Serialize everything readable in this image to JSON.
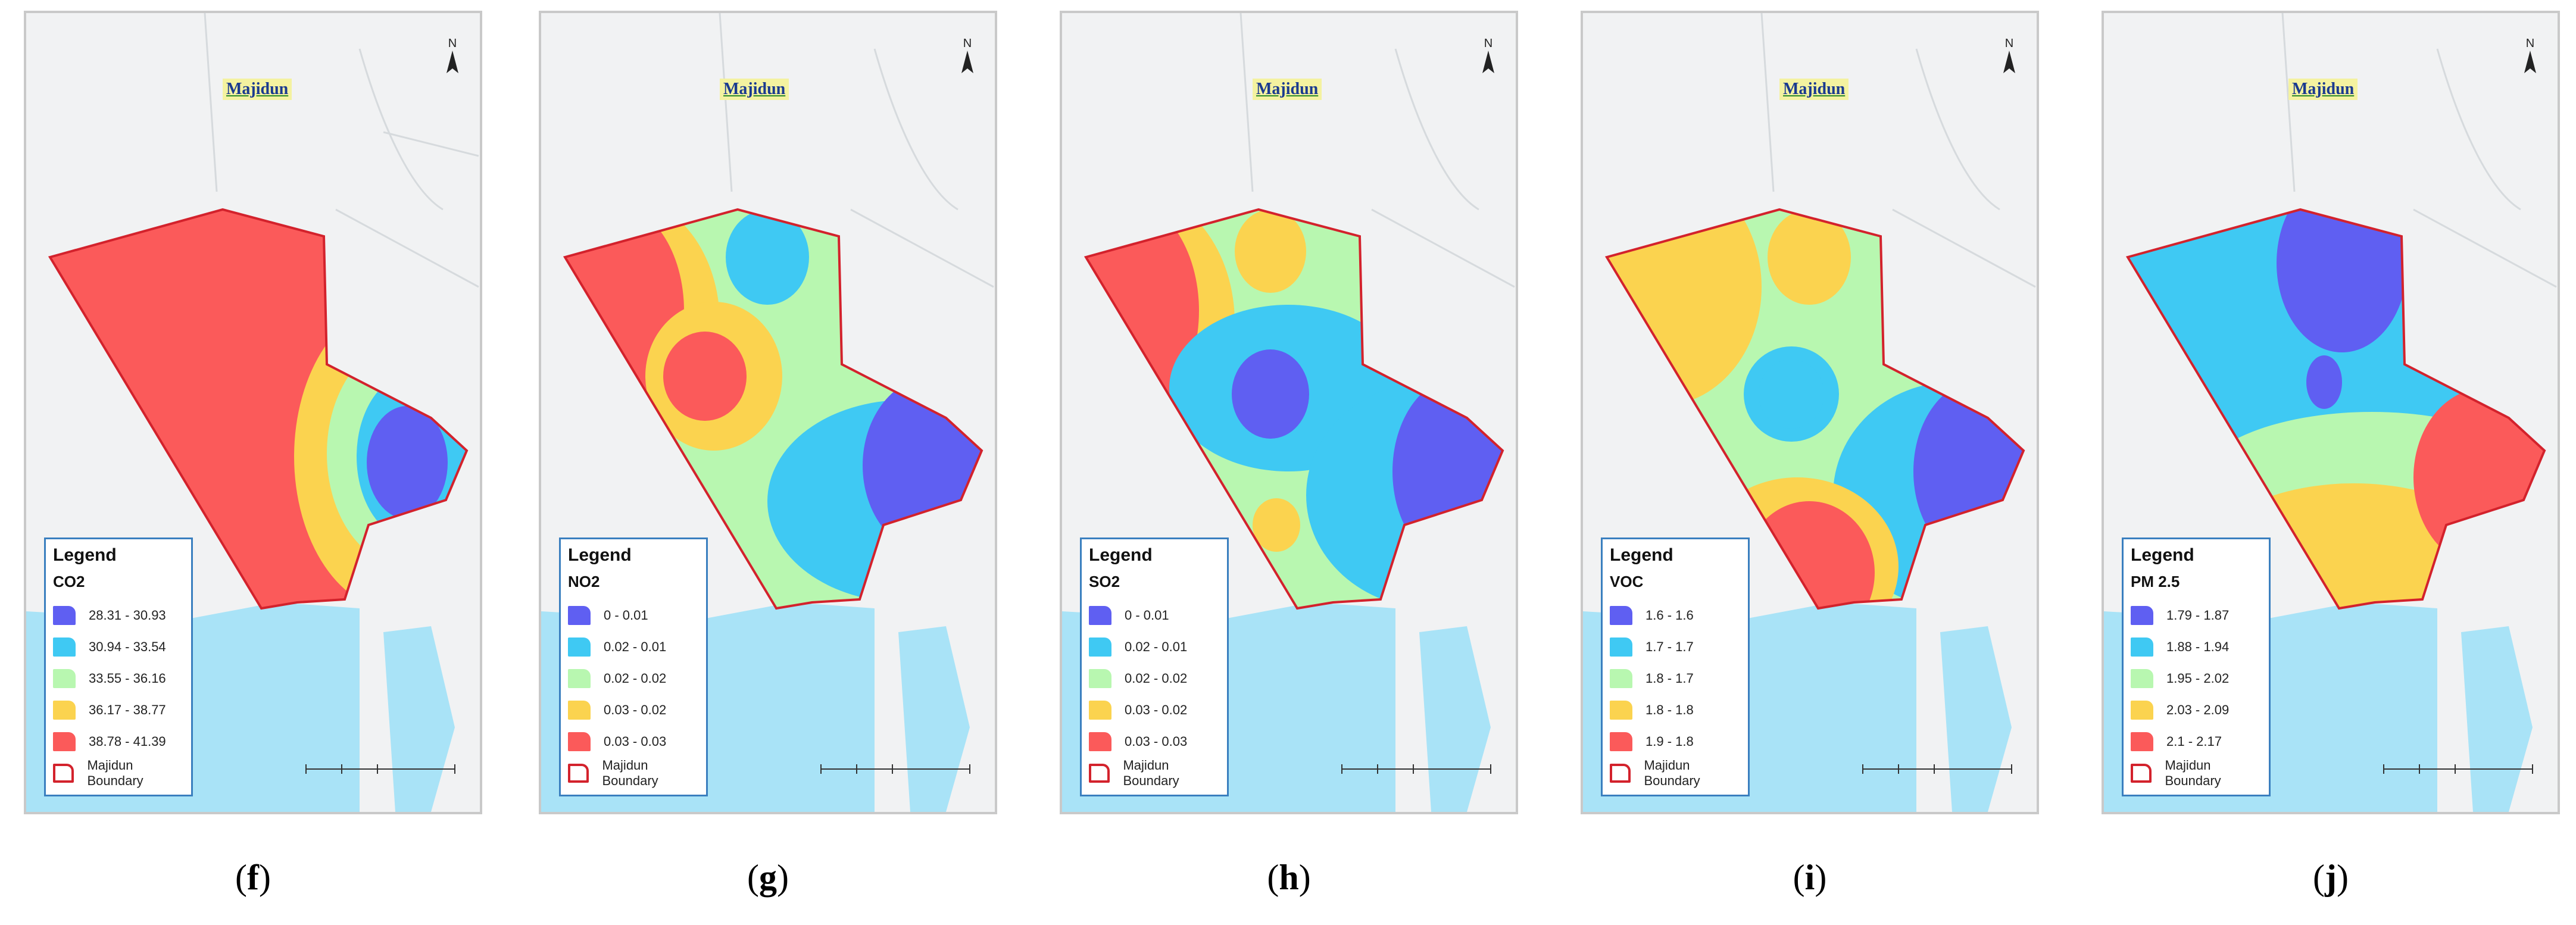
{
  "colors": {
    "class1": "#5f5ff2",
    "class2": "#3fc9f3",
    "class3": "#b8f7b0",
    "class4": "#fbd34f",
    "class5": "#fb5a5a",
    "boundary": "#d3222c",
    "sea": "#a9e3f7",
    "land": "#f1f2f3"
  },
  "panels": [
    {
      "town_label": "Majidun",
      "north_letter": "N",
      "legend_title": "Legend",
      "variable": "CO2",
      "classes": [
        "28.31 - 30.93",
        "30.94 - 33.54",
        "33.55 - 36.16",
        "36.17 - 38.77",
        "38.78 - 41.39"
      ],
      "boundary_label": "Majidun Boundary",
      "caption_letter": "f",
      "caption_full": "(f)"
    },
    {
      "town_label": "Majidun",
      "north_letter": "N",
      "legend_title": "Legend",
      "variable": "NO2",
      "classes": [
        "0 - 0.01",
        "0.02 - 0.01",
        "0.02 - 0.02",
        "0.03 - 0.02",
        "0.03 - 0.03"
      ],
      "boundary_label": "Majidun Boundary",
      "caption_letter": "g",
      "caption_full": "(g)"
    },
    {
      "town_label": "Majidun",
      "north_letter": "N",
      "legend_title": "Legend",
      "variable": "SO2",
      "classes": [
        "0 - 0.01",
        "0.02 - 0.01",
        "0.02 - 0.02",
        "0.03 - 0.02",
        "0.03 - 0.03"
      ],
      "boundary_label": "Majidun Boundary",
      "caption_letter": "h",
      "caption_full": "(h)"
    },
    {
      "town_label": "Majidun",
      "north_letter": "N",
      "legend_title": "Legend",
      "variable": "VOC",
      "classes": [
        "1.6 - 1.6",
        "1.7 - 1.7",
        "1.8 - 1.7",
        "1.8 - 1.8",
        "1.9 - 1.8"
      ],
      "boundary_label": "Majidun Boundary",
      "caption_letter": "i",
      "caption_full": "(i)"
    },
    {
      "town_label": "Majidun",
      "north_letter": "N",
      "legend_title": "Legend",
      "variable": "PM 2.5",
      "classes": [
        "1.79 - 1.87",
        "1.88 - 1.94",
        "1.95 - 2.02",
        "2.03 - 2.09",
        "2.1 - 2.17"
      ],
      "boundary_label": "Majidun Boundary",
      "caption_letter": "j",
      "caption_full": "(j)"
    }
  ]
}
